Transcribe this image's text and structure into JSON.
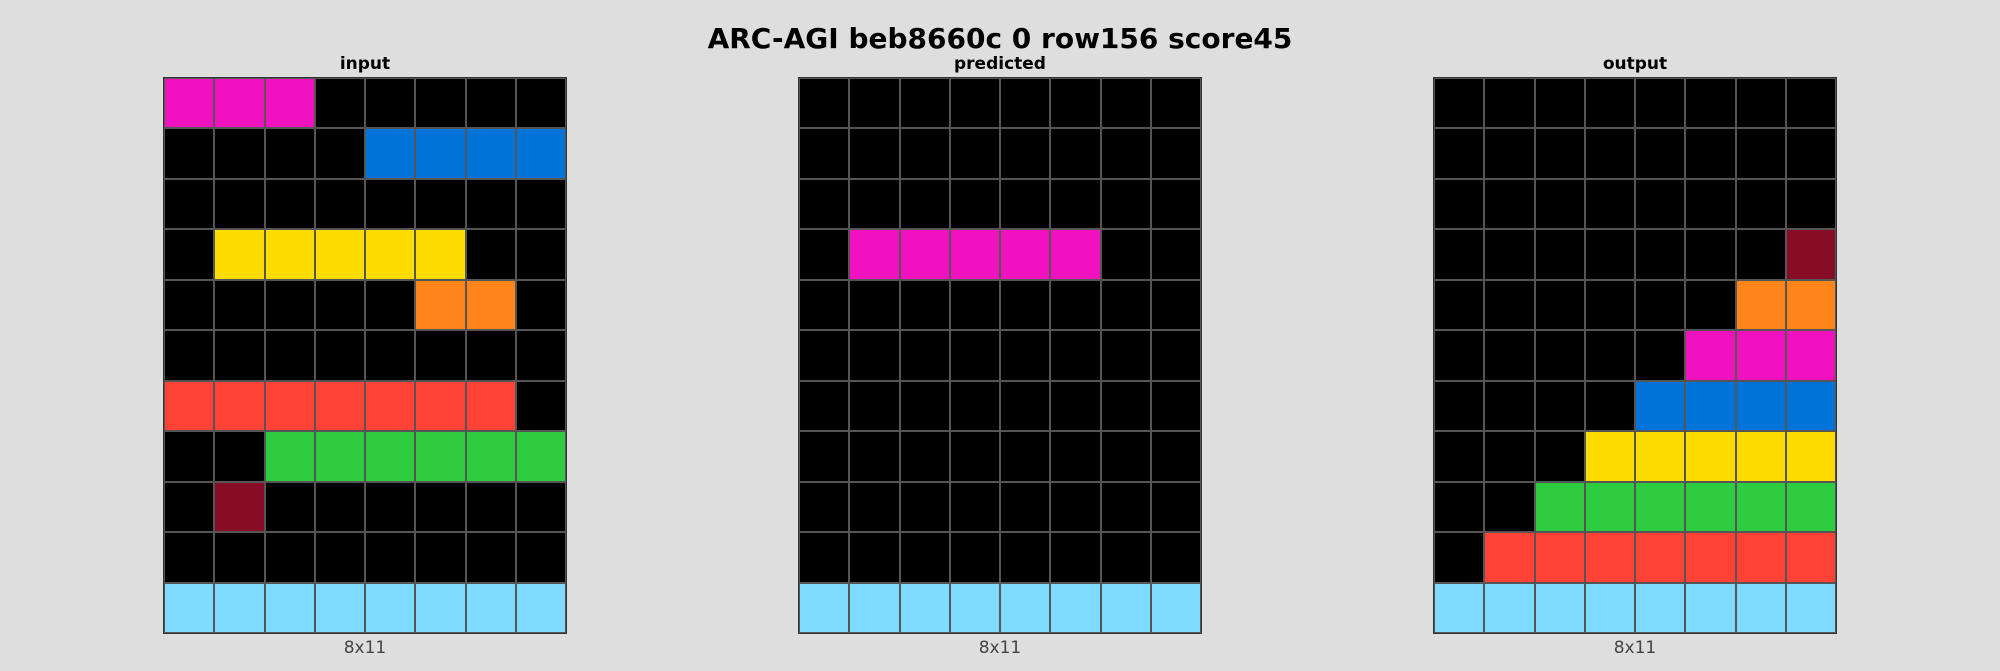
{
  "title": "ARC-AGI beb8660c 0 row156 score45",
  "palette": {
    "0": "#000000",
    "1": "#0074D9",
    "2": "#FF4136",
    "3": "#2ECC40",
    "4": "#FFDC00",
    "6": "#F012BE",
    "7": "#FF851B",
    "8": "#7FDBFF",
    "9": "#870C25"
  },
  "panels": [
    {
      "label": "input",
      "dims": "8x11",
      "grid": [
        [
          6,
          6,
          6,
          0,
          0,
          0,
          0,
          0
        ],
        [
          0,
          0,
          0,
          0,
          1,
          1,
          1,
          1
        ],
        [
          0,
          0,
          0,
          0,
          0,
          0,
          0,
          0
        ],
        [
          0,
          4,
          4,
          4,
          4,
          4,
          0,
          0
        ],
        [
          0,
          0,
          0,
          0,
          0,
          7,
          7,
          0
        ],
        [
          0,
          0,
          0,
          0,
          0,
          0,
          0,
          0
        ],
        [
          2,
          2,
          2,
          2,
          2,
          2,
          2,
          0
        ],
        [
          0,
          0,
          3,
          3,
          3,
          3,
          3,
          3
        ],
        [
          0,
          9,
          0,
          0,
          0,
          0,
          0,
          0
        ],
        [
          0,
          0,
          0,
          0,
          0,
          0,
          0,
          0
        ],
        [
          8,
          8,
          8,
          8,
          8,
          8,
          8,
          8
        ]
      ]
    },
    {
      "label": "predicted",
      "dims": "8x11",
      "grid": [
        [
          0,
          0,
          0,
          0,
          0,
          0,
          0,
          0
        ],
        [
          0,
          0,
          0,
          0,
          0,
          0,
          0,
          0
        ],
        [
          0,
          0,
          0,
          0,
          0,
          0,
          0,
          0
        ],
        [
          0,
          6,
          6,
          6,
          6,
          6,
          0,
          0
        ],
        [
          0,
          0,
          0,
          0,
          0,
          0,
          0,
          0
        ],
        [
          0,
          0,
          0,
          0,
          0,
          0,
          0,
          0
        ],
        [
          0,
          0,
          0,
          0,
          0,
          0,
          0,
          0
        ],
        [
          0,
          0,
          0,
          0,
          0,
          0,
          0,
          0
        ],
        [
          0,
          0,
          0,
          0,
          0,
          0,
          0,
          0
        ],
        [
          0,
          0,
          0,
          0,
          0,
          0,
          0,
          0
        ],
        [
          8,
          8,
          8,
          8,
          8,
          8,
          8,
          8
        ]
      ]
    },
    {
      "label": "output",
      "dims": "8x11",
      "grid": [
        [
          0,
          0,
          0,
          0,
          0,
          0,
          0,
          0
        ],
        [
          0,
          0,
          0,
          0,
          0,
          0,
          0,
          0
        ],
        [
          0,
          0,
          0,
          0,
          0,
          0,
          0,
          0
        ],
        [
          0,
          0,
          0,
          0,
          0,
          0,
          0,
          9
        ],
        [
          0,
          0,
          0,
          0,
          0,
          0,
          7,
          7
        ],
        [
          0,
          0,
          0,
          0,
          0,
          6,
          6,
          6
        ],
        [
          0,
          0,
          0,
          0,
          1,
          1,
          1,
          1
        ],
        [
          0,
          0,
          0,
          4,
          4,
          4,
          4,
          4
        ],
        [
          0,
          0,
          3,
          3,
          3,
          3,
          3,
          3
        ],
        [
          0,
          2,
          2,
          2,
          2,
          2,
          2,
          2
        ],
        [
          8,
          8,
          8,
          8,
          8,
          8,
          8,
          8
        ]
      ]
    }
  ]
}
